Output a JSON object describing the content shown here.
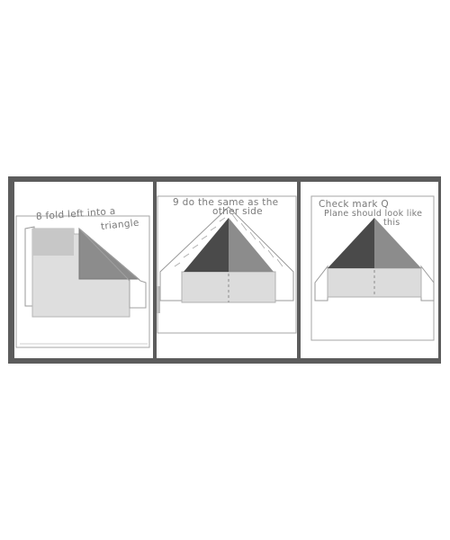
{
  "steps": [
    {
      "caption_line1": "8 fold left into a",
      "caption_line2": "triangle"
    },
    {
      "caption_line1": "9 do the same as the",
      "caption_line2": "other side"
    },
    {
      "caption_line1": "Check mark Q",
      "caption_line2": "Plane should look like",
      "caption_line3": "this"
    }
  ],
  "colors": {
    "frame": "#5c5c5c",
    "paper_outline": "#9a9a9a",
    "light_fill": "#dcdcdc",
    "mid_fill": "#8c8c8c",
    "dark_fill": "#4a4a4a",
    "pale_fill": "#c8c8c8"
  }
}
